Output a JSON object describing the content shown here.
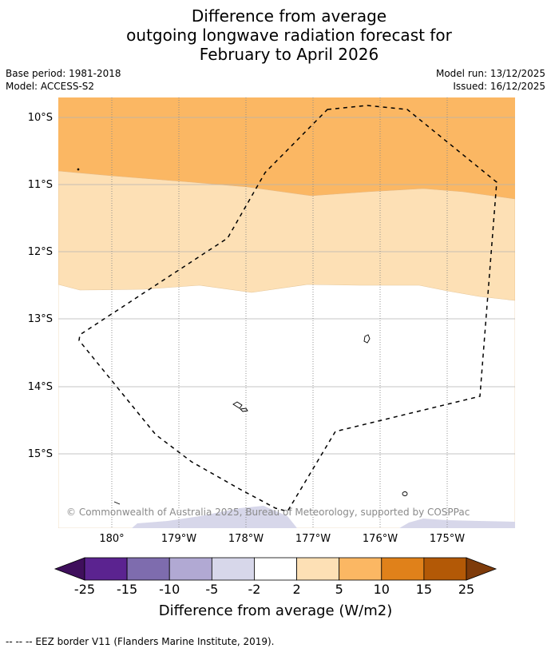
{
  "title": {
    "line1": "Difference from average",
    "line2": "outgoing longwave radiation forecast for",
    "line3": "February to April 2026"
  },
  "meta": {
    "base_period": "Base period: 1981-2018",
    "model": "Model: ACCESS-S2",
    "model_run": "Model run: 13/12/2025",
    "issued": "Issued: 16/12/2025"
  },
  "map": {
    "lat_labels": [
      "10°S",
      "11°S",
      "12°S",
      "13°S",
      "14°S",
      "15°S"
    ],
    "lon_labels": [
      "180°",
      "179°W",
      "178°W",
      "177°W",
      "176°W",
      "175°W"
    ],
    "copyright": "© Commonwealth of Australia 2025, Bureau of Meteorology, supported by COSPPac"
  },
  "legend": {
    "tick_labels": [
      "-25",
      "-15",
      "-10",
      "-5",
      "-2",
      "2",
      "5",
      "10",
      "15",
      "25"
    ],
    "title": "Difference from average (W/m2)",
    "colors": [
      "#3f0f5c",
      "#5b2390",
      "#7e6cae",
      "#b1a9d3",
      "#d7d7ea",
      "#ffffff",
      "#fde0b5",
      "#fbb763",
      "#e0811a",
      "#b35906",
      "#7e3b0a"
    ]
  },
  "footer": {
    "eez_label": "--  --  -- EEZ border V11 (Flanders Marine Institute, 2019)."
  }
}
